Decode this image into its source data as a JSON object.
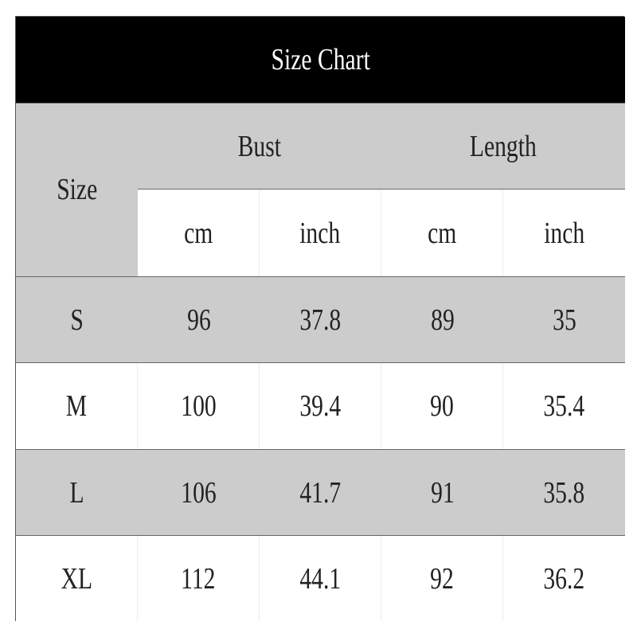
{
  "title": "Size Chart",
  "headers": {
    "size": "Size",
    "groups": [
      "Bust",
      "Length"
    ],
    "units": [
      "cm",
      "inch",
      "cm",
      "inch"
    ]
  },
  "rows": [
    {
      "size": "S",
      "values": [
        "96",
        "37.8",
        "89",
        "35"
      ]
    },
    {
      "size": "M",
      "values": [
        "100",
        "39.4",
        "90",
        "35.4"
      ]
    },
    {
      "size": "L",
      "values": [
        "106",
        "41.7",
        "91",
        "35.8"
      ]
    },
    {
      "size": "XL",
      "values": [
        "112",
        "44.1",
        "92",
        "36.2"
      ]
    }
  ],
  "colors": {
    "title_bg": "#000000",
    "header_bg": "#cccccc",
    "alt_row_bg": "#cccccc"
  }
}
